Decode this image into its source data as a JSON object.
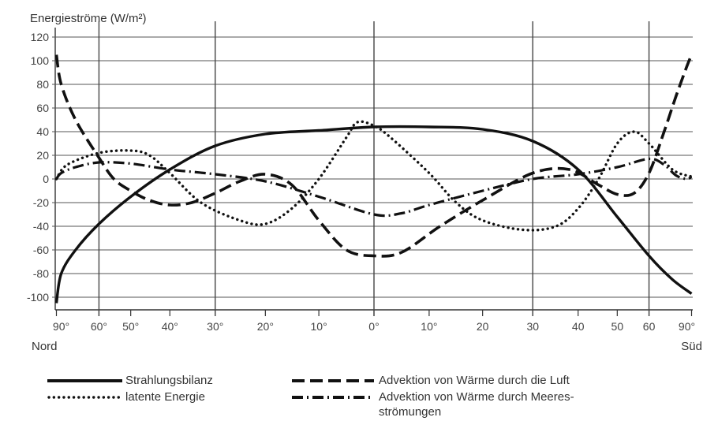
{
  "chart_data": {
    "type": "line",
    "ylabel": "Energieströme (W/m²)",
    "yticks": [
      120,
      100,
      80,
      60,
      40,
      20,
      0,
      -20,
      -40,
      -60,
      -80,
      -100
    ],
    "ylim": [
      -110,
      125
    ],
    "x_tick_labels": [
      "90°",
      "60°",
      "50°",
      "40°",
      "30°",
      "20°",
      "10°",
      "0°",
      "10°",
      "20",
      "30",
      "40",
      "50",
      "60",
      "90°"
    ],
    "hemisphere_labels": {
      "left": "Nord",
      "right": "Süd"
    },
    "x_positions_lat": [
      -90,
      -60,
      -50,
      -40,
      -30,
      -20,
      -10,
      0,
      10,
      20,
      30,
      40,
      50,
      60,
      90
    ],
    "grid": true,
    "series": [
      {
        "name": "Strahlungsbilanz",
        "style": "solid",
        "points": [
          [
            -90,
            -105
          ],
          [
            -80,
            -80
          ],
          [
            -70,
            -60
          ],
          [
            -60,
            -38
          ],
          [
            -50,
            -15
          ],
          [
            -40,
            8
          ],
          [
            -30,
            28
          ],
          [
            -20,
            38
          ],
          [
            -10,
            41
          ],
          [
            0,
            44
          ],
          [
            10,
            44
          ],
          [
            20,
            42
          ],
          [
            30,
            32
          ],
          [
            40,
            8
          ],
          [
            50,
            -32
          ],
          [
            60,
            -65
          ],
          [
            70,
            -85
          ],
          [
            90,
            -97
          ]
        ]
      },
      {
        "name": "latente Energie",
        "style": "dotted",
        "points": [
          [
            -90,
            0
          ],
          [
            -75,
            12
          ],
          [
            -60,
            22
          ],
          [
            -50,
            24
          ],
          [
            -45,
            20
          ],
          [
            -40,
            5
          ],
          [
            -33,
            -20
          ],
          [
            -25,
            -35
          ],
          [
            -20,
            -38
          ],
          [
            -15,
            -25
          ],
          [
            -10,
            0
          ],
          [
            -5,
            35
          ],
          [
            -3,
            48
          ],
          [
            0,
            45
          ],
          [
            3,
            35
          ],
          [
            10,
            5
          ],
          [
            15,
            -20
          ],
          [
            20,
            -35
          ],
          [
            28,
            -43
          ],
          [
            35,
            -40
          ],
          [
            40,
            -25
          ],
          [
            45,
            0
          ],
          [
            50,
            30
          ],
          [
            55,
            40
          ],
          [
            60,
            30
          ],
          [
            70,
            8
          ],
          [
            90,
            2
          ]
        ]
      },
      {
        "name": "Advektion von Wärme durch die Luft",
        "style": "dashed",
        "points": [
          [
            -90,
            105
          ],
          [
            -80,
            80
          ],
          [
            -70,
            50
          ],
          [
            -60,
            18
          ],
          [
            -55,
            0
          ],
          [
            -50,
            -10
          ],
          [
            -45,
            -18
          ],
          [
            -40,
            -22
          ],
          [
            -35,
            -20
          ],
          [
            -30,
            -12
          ],
          [
            -25,
            -2
          ],
          [
            -20,
            4
          ],
          [
            -15,
            -5
          ],
          [
            -10,
            -35
          ],
          [
            -5,
            -60
          ],
          [
            0,
            -65
          ],
          [
            5,
            -62
          ],
          [
            12,
            -40
          ],
          [
            20,
            -18
          ],
          [
            30,
            5
          ],
          [
            38,
            8
          ],
          [
            45,
            -5
          ],
          [
            50,
            -13
          ],
          [
            55,
            -12
          ],
          [
            60,
            5
          ],
          [
            66,
            40
          ],
          [
            72,
            70
          ],
          [
            80,
            95
          ],
          [
            90,
            105
          ]
        ]
      },
      {
        "name": "Advektion von Wärme durch Meeres-strömungen",
        "style": "dashdot",
        "points": [
          [
            -90,
            0
          ],
          [
            -80,
            5
          ],
          [
            -70,
            10
          ],
          [
            -60,
            14
          ],
          [
            -50,
            13
          ],
          [
            -40,
            8
          ],
          [
            -30,
            4
          ],
          [
            -20,
            -2
          ],
          [
            -10,
            -15
          ],
          [
            0,
            -30
          ],
          [
            5,
            -29
          ],
          [
            10,
            -22
          ],
          [
            20,
            -10
          ],
          [
            30,
            0
          ],
          [
            40,
            4
          ],
          [
            50,
            10
          ],
          [
            60,
            17
          ],
          [
            66,
            12
          ],
          [
            72,
            3
          ],
          [
            80,
            0
          ],
          [
            90,
            2
          ]
        ]
      }
    ]
  },
  "legend": {
    "items": [
      {
        "label": "Strahlungsbilanz",
        "style": "solid"
      },
      {
        "label": "Advektion von Wärme durch die Luft",
        "style": "dashed"
      },
      {
        "label": "latente Energie",
        "style": "dotted"
      },
      {
        "label": "Advektion von Wärme durch Meeres-",
        "label2": "strömungen",
        "style": "dashdot"
      }
    ]
  }
}
